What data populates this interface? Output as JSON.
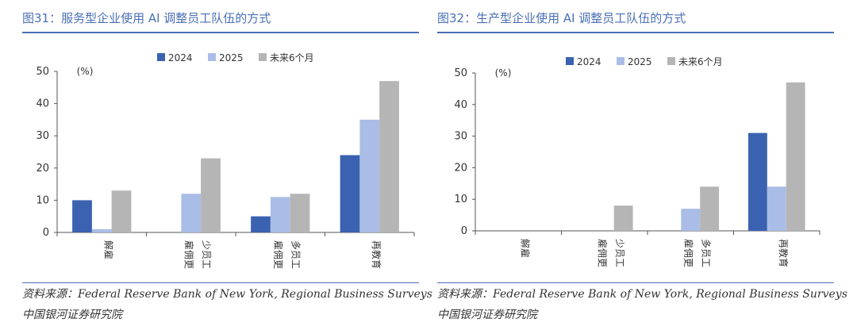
{
  "chart_data": [
    {
      "type": "bar",
      "title": "图31：服务型企业使用 AI 调整员工队伍的方式",
      "unit_label": "(%)",
      "categories": [
        [
          "解雇"
        ],
        [
          "雇佣更",
          "少员工"
        ],
        [
          "雇佣更",
          "多员工"
        ],
        [
          "再教育"
        ]
      ],
      "series": [
        {
          "name": "2024",
          "values": [
            10,
            0,
            5,
            24
          ]
        },
        {
          "name": "2025",
          "values": [
            1,
            12,
            11,
            35
          ]
        },
        {
          "name": "未来6个月",
          "values": [
            13,
            23,
            12,
            47
          ]
        }
      ],
      "ylim": [
        0,
        50
      ],
      "yticks": [
        0,
        10,
        20,
        30,
        40,
        50
      ],
      "source": "资料来源：Federal Reserve Bank of New York, Regional Business Surveys",
      "org": "中国银河证券研究院"
    },
    {
      "type": "bar",
      "title": "图32：生产型企业使用 AI 调整员工队伍的方式",
      "unit_label": "(%)",
      "categories": [
        [
          "解雇"
        ],
        [
          "雇佣更",
          "少员工"
        ],
        [
          "雇佣更",
          "多员工"
        ],
        [
          "再教育"
        ]
      ],
      "series": [
        {
          "name": "2024",
          "values": [
            0,
            0,
            0,
            31
          ]
        },
        {
          "name": "2025",
          "values": [
            0,
            0,
            7,
            14
          ]
        },
        {
          "name": "未来6个月",
          "values": [
            0,
            8,
            14,
            47
          ]
        }
      ],
      "ylim": [
        0,
        50
      ],
      "yticks": [
        0,
        10,
        20,
        30,
        40,
        50
      ],
      "source": "资料来源：Federal Reserve Bank of New York, Regional Business Surveys",
      "org": "中国银河证券研究院"
    }
  ],
  "colors": {
    "2024": "#3a62b0",
    "2025": "#a9bde6",
    "future": "#b5b5b5",
    "accent": "#4a6fb5"
  }
}
